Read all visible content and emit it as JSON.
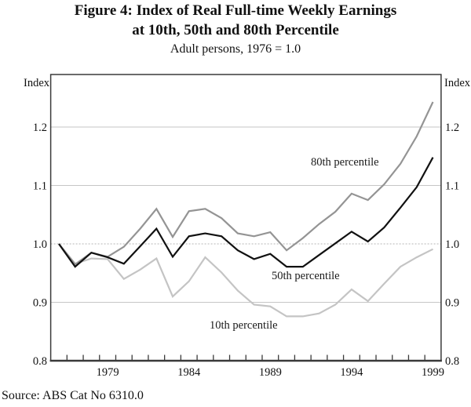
{
  "figure": {
    "title_line1": "Figure 4: Index of Real Full-time Weekly Earnings",
    "title_line2": "at 10th, 50th and 80th Percentile",
    "subtitle": "Adult persons, 1976 = 1.0",
    "source": "Source: ABS Cat No 6310.0"
  },
  "axes": {
    "left_unit_label": "Index",
    "right_unit_label": "Index",
    "y_tick_values": [
      0.8,
      0.9,
      1.0,
      1.1,
      1.2
    ],
    "y_tick_labels": [
      "0.8",
      "0.9",
      "1.0",
      "1.1",
      "1.2"
    ],
    "x_tick_years": [
      1979,
      1984,
      1989,
      1994,
      1999
    ],
    "x_tick_labels": [
      "1979",
      "1984",
      "1989",
      "1994",
      "1999"
    ]
  },
  "chart_data": {
    "type": "line",
    "title": "Figure 4: Index of Real Full-time Weekly Earnings at 10th, 50th and 80th Percentile",
    "subtitle": "Adult persons, 1976 = 1.0",
    "xlabel": "",
    "ylabel": "Index",
    "ylim": [
      0.8,
      1.29
    ],
    "xlim": [
      1975.5,
      1999.5
    ],
    "grid": "horizontal",
    "legend_position": "inline-annotations",
    "x": [
      1976,
      1977,
      1978,
      1979,
      1980,
      1981,
      1982,
      1983,
      1984,
      1985,
      1986,
      1987,
      1988,
      1989,
      1990,
      1991,
      1992,
      1993,
      1994,
      1995,
      1996,
      1997,
      1998,
      1999
    ],
    "series": [
      {
        "name": "10th percentile",
        "color": "#c4c4c4",
        "values": [
          1.0,
          0.966,
          0.975,
          0.974,
          0.94,
          0.956,
          0.975,
          0.91,
          0.936,
          0.977,
          0.951,
          0.92,
          0.896,
          0.893,
          0.876,
          0.876,
          0.881,
          0.896,
          0.922,
          0.902,
          0.932,
          0.961,
          0.977,
          0.991
        ]
      },
      {
        "name": "80th percentile",
        "color": "#949494",
        "values": [
          1.0,
          0.965,
          0.985,
          0.978,
          0.995,
          1.026,
          1.06,
          1.012,
          1.056,
          1.06,
          1.044,
          1.018,
          1.013,
          1.02,
          0.989,
          1.01,
          1.034,
          1.055,
          1.086,
          1.075,
          1.102,
          1.137,
          1.184,
          1.243
        ]
      },
      {
        "name": "50th percentile",
        "color": "#111111",
        "values": [
          1.0,
          0.961,
          0.985,
          0.977,
          0.966,
          0.996,
          1.026,
          0.978,
          1.013,
          1.018,
          1.013,
          0.989,
          0.974,
          0.983,
          0.961,
          0.961,
          0.981,
          1.001,
          1.021,
          1.004,
          1.028,
          1.062,
          1.097,
          1.148
        ]
      }
    ],
    "annotations": [
      {
        "text": "80th percentile"
      },
      {
        "text": "50th percentile"
      },
      {
        "text": "10th percentile"
      }
    ]
  }
}
